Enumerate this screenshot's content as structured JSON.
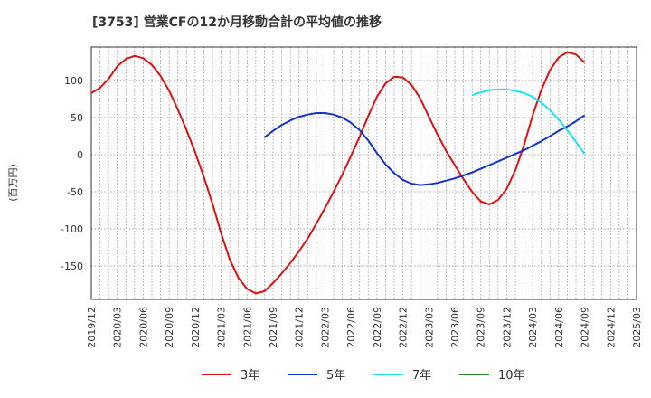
{
  "chart_data": {
    "type": "line",
    "title": "[3753]  営業CFの12か月移動合計の平均値の推移",
    "ylabel": "(百万円)",
    "xlabel": "",
    "ylim": [
      -195,
      145
    ],
    "yticks": [
      100,
      50,
      0,
      -50,
      -100,
      -150
    ],
    "grid": true,
    "legend_position": "bottom",
    "x_tick_labels": [
      "2019/12",
      "2020/03",
      "2020/06",
      "2020/09",
      "2020/12",
      "2021/03",
      "2021/06",
      "2021/09",
      "2021/12",
      "2022/03",
      "2022/06",
      "2022/09",
      "2022/12",
      "2023/03",
      "2023/06",
      "2023/09",
      "2023/12",
      "2024/03",
      "2024/06",
      "2024/09",
      "2024/12",
      "2025/03"
    ],
    "series": [
      {
        "name": "3年",
        "color": "#dd1111",
        "points": [
          [
            "2019/12",
            83
          ],
          [
            "2020/01",
            90
          ],
          [
            "2020/02",
            102
          ],
          [
            "2020/03",
            119
          ],
          [
            "2020/04",
            129
          ],
          [
            "2020/05",
            133
          ],
          [
            "2020/06",
            130
          ],
          [
            "2020/07",
            121
          ],
          [
            "2020/08",
            106
          ],
          [
            "2020/09",
            86
          ],
          [
            "2020/10",
            61
          ],
          [
            "2020/11",
            33
          ],
          [
            "2020/12",
            3
          ],
          [
            "2021/01",
            -30
          ],
          [
            "2021/02",
            -66
          ],
          [
            "2021/03",
            -106
          ],
          [
            "2021/04",
            -141
          ],
          [
            "2021/05",
            -166
          ],
          [
            "2021/06",
            -181
          ],
          [
            "2021/07",
            -187
          ],
          [
            "2021/08",
            -184
          ],
          [
            "2021/09",
            -173
          ],
          [
            "2021/10",
            -160
          ],
          [
            "2021/11",
            -146
          ],
          [
            "2021/12",
            -130
          ],
          [
            "2022/01",
            -113
          ],
          [
            "2022/02",
            -93
          ],
          [
            "2022/03",
            -72
          ],
          [
            "2022/04",
            -50
          ],
          [
            "2022/05",
            -27
          ],
          [
            "2022/06",
            -2
          ],
          [
            "2022/07",
            24
          ],
          [
            "2022/08",
            52
          ],
          [
            "2022/09",
            78
          ],
          [
            "2022/10",
            96
          ],
          [
            "2022/11",
            105
          ],
          [
            "2022/12",
            104
          ],
          [
            "2023/01",
            94
          ],
          [
            "2023/02",
            76
          ],
          [
            "2023/03",
            51
          ],
          [
            "2023/04",
            27
          ],
          [
            "2023/05",
            5
          ],
          [
            "2023/06",
            -14
          ],
          [
            "2023/07",
            -33
          ],
          [
            "2023/08",
            -50
          ],
          [
            "2023/09",
            -63
          ],
          [
            "2023/10",
            -67
          ],
          [
            "2023/11",
            -61
          ],
          [
            "2023/12",
            -46
          ],
          [
            "2024/01",
            -21
          ],
          [
            "2024/02",
            13
          ],
          [
            "2024/03",
            53
          ],
          [
            "2024/04",
            87
          ],
          [
            "2024/05",
            114
          ],
          [
            "2024/06",
            131
          ],
          [
            "2024/07",
            138
          ],
          [
            "2024/08",
            135
          ],
          [
            "2024/09",
            124
          ]
        ]
      },
      {
        "name": "5年",
        "color": "#1133cc",
        "points": [
          [
            "2021/08",
            23
          ],
          [
            "2021/09",
            32
          ],
          [
            "2021/10",
            40
          ],
          [
            "2021/11",
            46
          ],
          [
            "2021/12",
            51
          ],
          [
            "2022/01",
            54
          ],
          [
            "2022/02",
            56
          ],
          [
            "2022/03",
            56
          ],
          [
            "2022/04",
            54
          ],
          [
            "2022/05",
            50
          ],
          [
            "2022/06",
            43
          ],
          [
            "2022/07",
            33
          ],
          [
            "2022/08",
            19
          ],
          [
            "2022/09",
            2
          ],
          [
            "2022/10",
            -13
          ],
          [
            "2022/11",
            -25
          ],
          [
            "2022/12",
            -34
          ],
          [
            "2023/01",
            -39
          ],
          [
            "2023/02",
            -41
          ],
          [
            "2023/03",
            -40
          ],
          [
            "2023/04",
            -38
          ],
          [
            "2023/05",
            -35
          ],
          [
            "2023/06",
            -32
          ],
          [
            "2023/07",
            -28
          ],
          [
            "2023/08",
            -24
          ],
          [
            "2023/09",
            -19
          ],
          [
            "2023/10",
            -14
          ],
          [
            "2023/11",
            -9
          ],
          [
            "2023/12",
            -4
          ],
          [
            "2024/01",
            1
          ],
          [
            "2024/02",
            6
          ],
          [
            "2024/03",
            12
          ],
          [
            "2024/04",
            18
          ],
          [
            "2024/05",
            25
          ],
          [
            "2024/06",
            32
          ],
          [
            "2024/07",
            38
          ],
          [
            "2024/08",
            45
          ],
          [
            "2024/09",
            53
          ]
        ]
      },
      {
        "name": "7年",
        "color": "#22e0f0",
        "points": [
          [
            "2023/08",
            80
          ],
          [
            "2023/09",
            84
          ],
          [
            "2023/10",
            87
          ],
          [
            "2023/11",
            88
          ],
          [
            "2023/12",
            88
          ],
          [
            "2024/01",
            86
          ],
          [
            "2024/02",
            83
          ],
          [
            "2024/03",
            78
          ],
          [
            "2024/04",
            70
          ],
          [
            "2024/05",
            60
          ],
          [
            "2024/06",
            47
          ],
          [
            "2024/07",
            33
          ],
          [
            "2024/08",
            17
          ],
          [
            "2024/09",
            1
          ]
        ]
      },
      {
        "name": "10年",
        "color": "#228822",
        "points": []
      }
    ]
  }
}
